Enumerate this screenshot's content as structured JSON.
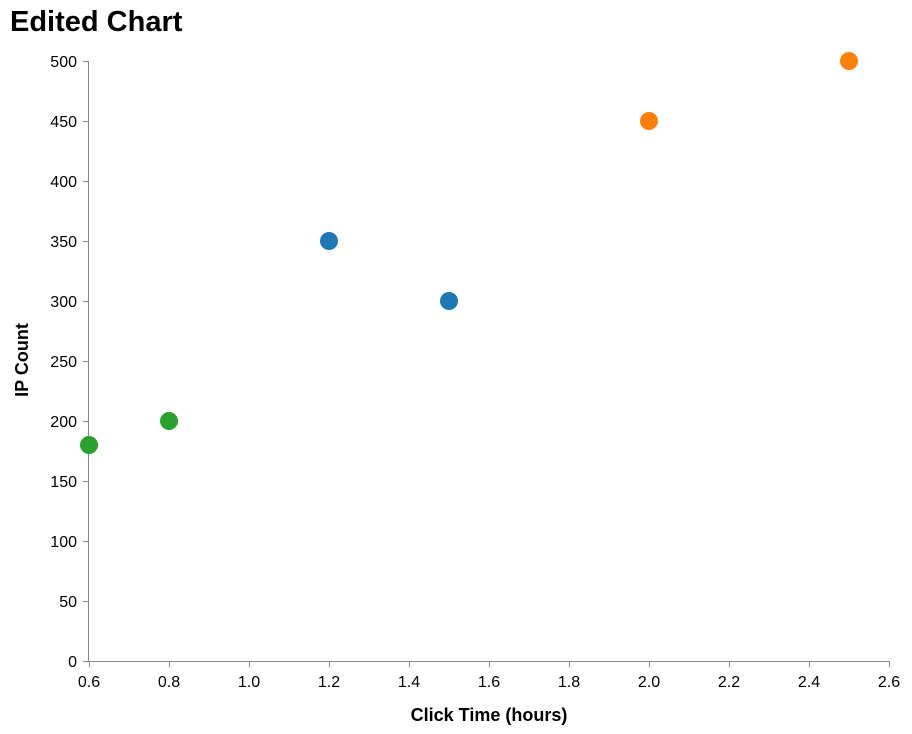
{
  "chart_data": {
    "type": "scatter",
    "title": "Edited Chart",
    "xlabel": "Click Time (hours)",
    "ylabel": "IP Count",
    "xlim": [
      0.6,
      2.6
    ],
    "ylim": [
      0,
      500
    ],
    "x_ticks": [
      0.6,
      0.8,
      1.0,
      1.2,
      1.4,
      1.6,
      1.8,
      2.0,
      2.2,
      2.4,
      2.6
    ],
    "x_tick_labels": [
      "0.6",
      "0.8",
      "1.0",
      "1.2",
      "1.4",
      "1.6",
      "1.8",
      "2.0",
      "2.2",
      "2.4",
      "2.6"
    ],
    "y_ticks": [
      0,
      50,
      100,
      150,
      200,
      250,
      300,
      350,
      400,
      450,
      500
    ],
    "y_tick_labels": [
      "0",
      "50",
      "100",
      "150",
      "200",
      "250",
      "300",
      "350",
      "400",
      "450",
      "500"
    ],
    "grid": false,
    "legend": "none",
    "points": [
      {
        "x": 0.6,
        "y": 180,
        "color": "#2ca02c"
      },
      {
        "x": 0.8,
        "y": 200,
        "color": "#2ca02c"
      },
      {
        "x": 1.2,
        "y": 350,
        "color": "#1f77b4"
      },
      {
        "x": 1.5,
        "y": 300,
        "color": "#1f77b4"
      },
      {
        "x": 2.0,
        "y": 450,
        "color": "#ff7f0e"
      },
      {
        "x": 2.5,
        "y": 500,
        "color": "#ff7f0e"
      }
    ]
  }
}
